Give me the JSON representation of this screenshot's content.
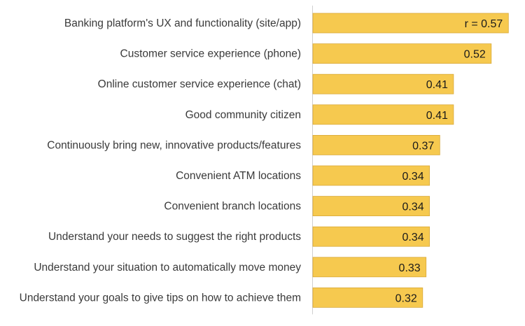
{
  "chart_data": {
    "type": "bar",
    "orientation": "horizontal",
    "categories": [
      "Banking platform's UX and functionality (site/app)",
      "Customer service experience (phone)",
      "Online customer service experience (chat)",
      "Good community citizen",
      "Continuously bring new, innovative products/features",
      "Convenient ATM locations",
      "Convenient branch locations",
      "Understand your needs to suggest the right products",
      "Understand your situation to automatically move money",
      "Understand your goals to give tips on how to achieve them"
    ],
    "values": [
      0.57,
      0.52,
      0.41,
      0.41,
      0.37,
      0.34,
      0.34,
      0.34,
      0.33,
      0.32
    ],
    "data_labels": [
      "r = 0.57",
      "0.52",
      "0.41",
      "0.41",
      "0.37",
      "0.34",
      "0.34",
      "0.34",
      "0.33",
      "0.32"
    ],
    "xlim": [
      0,
      0.6
    ],
    "grid": false,
    "legend": "none",
    "bar_color": "#f6c94f",
    "bar_edge_color": "#d9a93a",
    "axis_color": "#d0d0d0"
  }
}
